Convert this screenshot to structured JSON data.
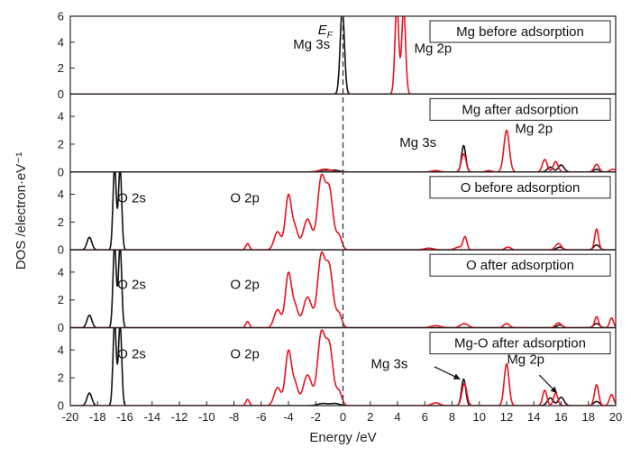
{
  "chart_data": {
    "type": "line",
    "xlabel": "Energy /eV",
    "ylabel": "DOS /electron·eV⁻¹",
    "xlim": [
      -20,
      20
    ],
    "xticks": [
      -20,
      -18,
      -16,
      -14,
      -12,
      -10,
      -8,
      -6,
      -4,
      -2,
      0,
      2,
      4,
      6,
      8,
      10,
      12,
      14,
      16,
      18,
      20
    ],
    "fermi_marker_x": 0,
    "fermi_label": {
      "main": "E",
      "sub": "F"
    },
    "colors": {
      "s": "#111111",
      "p": "#e8141e",
      "frame": "#222222",
      "fermi": "#333333"
    },
    "panels": [
      {
        "title": "Mg before adsorption",
        "ylim": [
          0,
          6
        ],
        "yticks": [
          0,
          2,
          4,
          6
        ],
        "labels": [
          {
            "text": "Mg 3s",
            "x": -2.3,
            "y": 3.5
          },
          {
            "text": "Mg 2p",
            "x": 6.6,
            "y": 3.2
          }
        ],
        "series": [
          {
            "name": "s",
            "color": "#111111",
            "peaks": [
              [
                -0.05,
                6.6,
                0.22
              ]
            ]
          },
          {
            "name": "p",
            "color": "#e8141e",
            "peaks": [
              [
                3.95,
                6.8,
                0.2
              ],
              [
                4.45,
                6.6,
                0.2
              ]
            ]
          }
        ]
      },
      {
        "title": "Mg after adsorption",
        "ylim": [
          0,
          5.6
        ],
        "yticks": [
          0,
          2,
          4
        ],
        "labels": [
          {
            "text": "Mg 3s",
            "x": 5.5,
            "y": 1.8
          },
          {
            "text": "Mg 2p",
            "x": 14.0,
            "y": 2.8
          }
        ],
        "series": [
          {
            "name": "s",
            "color": "#111111",
            "peaks": [
              [
                -1.4,
                0.12,
                0.5
              ],
              [
                -0.6,
                0.12,
                0.5
              ],
              [
                8.85,
                1.9,
                0.22
              ],
              [
                15.2,
                0.35,
                0.3
              ],
              [
                16.0,
                0.5,
                0.3
              ],
              [
                18.6,
                0.2,
                0.3
              ]
            ]
          },
          {
            "name": "p",
            "color": "#e8141e",
            "peaks": [
              [
                -1.3,
                0.2,
                0.6
              ],
              [
                6.8,
                0.1,
                0.4
              ],
              [
                8.85,
                1.3,
                0.25
              ],
              [
                10.7,
                0.1,
                0.3
              ],
              [
                12.0,
                3.0,
                0.28
              ],
              [
                14.8,
                0.9,
                0.25
              ],
              [
                15.6,
                0.75,
                0.25
              ],
              [
                18.6,
                0.55,
                0.25
              ],
              [
                19.8,
                0.2,
                0.3
              ]
            ]
          }
        ]
      },
      {
        "title": "O before adsorption",
        "ylim": [
          0,
          5.6
        ],
        "yticks": [
          0,
          2,
          4
        ],
        "labels": [
          {
            "text": "O 2s",
            "x": -15.5,
            "y": 3.4
          },
          {
            "text": "O 2p",
            "x": -7.2,
            "y": 3.4
          }
        ],
        "series": [
          {
            "name": "s",
            "color": "#111111",
            "peaks": [
              [
                -18.6,
                0.9,
                0.25
              ],
              [
                -16.75,
                6.0,
                0.17
              ],
              [
                -16.35,
                5.9,
                0.17
              ],
              [
                18.6,
                0.35,
                0.3
              ],
              [
                15.9,
                0.2,
                0.3
              ]
            ]
          },
          {
            "name": "p",
            "color": "#e8141e",
            "peaks": [
              [
                -7.0,
                0.45,
                0.18
              ],
              [
                -4.8,
                1.3,
                0.35
              ],
              [
                -4.0,
                3.9,
                0.32
              ],
              [
                -3.5,
                1.4,
                0.3
              ],
              [
                -2.6,
                2.2,
                0.45
              ],
              [
                -1.6,
                5.0,
                0.38
              ],
              [
                -1.0,
                4.2,
                0.38
              ],
              [
                -0.3,
                1.0,
                0.3
              ],
              [
                6.3,
                0.12,
                0.5
              ],
              [
                8.5,
                0.2,
                0.4
              ],
              [
                8.95,
                0.9,
                0.2
              ],
              [
                12.1,
                0.2,
                0.3
              ],
              [
                15.8,
                0.45,
                0.3
              ],
              [
                18.6,
                1.5,
                0.2
              ]
            ]
          }
        ]
      },
      {
        "title": "O after adsorption",
        "ylim": [
          0,
          5.6
        ],
        "yticks": [
          0,
          2,
          4
        ],
        "labels": [
          {
            "text": "O 2s",
            "x": -15.5,
            "y": 2.8
          },
          {
            "text": "O 2p",
            "x": -7.2,
            "y": 2.8
          }
        ],
        "series": [
          {
            "name": "s",
            "color": "#111111",
            "peaks": [
              [
                -18.6,
                0.9,
                0.25
              ],
              [
                -16.75,
                6.0,
                0.17
              ],
              [
                -16.35,
                5.9,
                0.17
              ],
              [
                18.6,
                0.3,
                0.3
              ],
              [
                15.9,
                0.2,
                0.3
              ]
            ]
          },
          {
            "name": "p",
            "color": "#e8141e",
            "peaks": [
              [
                -7.0,
                0.45,
                0.18
              ],
              [
                -4.8,
                1.3,
                0.35
              ],
              [
                -4.0,
                3.9,
                0.32
              ],
              [
                -3.5,
                1.4,
                0.3
              ],
              [
                -2.6,
                2.2,
                0.45
              ],
              [
                -1.6,
                5.0,
                0.38
              ],
              [
                -1.0,
                4.2,
                0.38
              ],
              [
                -0.3,
                1.0,
                0.3
              ],
              [
                6.8,
                0.15,
                0.5
              ],
              [
                8.9,
                0.3,
                0.4
              ],
              [
                12.0,
                0.3,
                0.3
              ],
              [
                15.8,
                0.35,
                0.3
              ],
              [
                18.6,
                0.8,
                0.2
              ],
              [
                19.7,
                0.7,
                0.2
              ]
            ]
          }
        ]
      },
      {
        "title": "Mg-O after adsorption",
        "ylim": [
          0,
          5.6
        ],
        "yticks": [
          0,
          2,
          4
        ],
        "labels": [
          {
            "text": "O 2s",
            "x": -15.5,
            "y": 3.4
          },
          {
            "text": "O 2p",
            "x": -7.2,
            "y": 3.4
          },
          {
            "text": "Mg 3s",
            "x": 3.4,
            "y": 2.7
          },
          {
            "text": "Mg 2p",
            "x": 13.4,
            "y": 3.0
          }
        ],
        "arrows": [
          {
            "from": [
              6.7,
              2.8
            ],
            "to": [
              8.6,
              1.9
            ]
          },
          {
            "from": [
              14.4,
              2.2
            ],
            "to": [
              15.7,
              0.9
            ]
          }
        ],
        "series": [
          {
            "name": "s",
            "color": "#111111",
            "peaks": [
              [
                -18.6,
                0.9,
                0.25
              ],
              [
                -16.75,
                6.0,
                0.17
              ],
              [
                -16.35,
                5.9,
                0.17
              ],
              [
                -1.5,
                0.15,
                0.5
              ],
              [
                -0.6,
                0.15,
                0.5
              ],
              [
                8.85,
                1.9,
                0.22
              ],
              [
                15.2,
                0.55,
                0.3
              ],
              [
                16.0,
                0.6,
                0.3
              ],
              [
                18.6,
                0.3,
                0.3
              ]
            ]
          },
          {
            "name": "p",
            "color": "#e8141e",
            "peaks": [
              [
                -7.0,
                0.45,
                0.18
              ],
              [
                -4.8,
                1.3,
                0.35
              ],
              [
                -4.0,
                3.9,
                0.32
              ],
              [
                -3.5,
                1.4,
                0.3
              ],
              [
                -2.6,
                2.2,
                0.45
              ],
              [
                -1.6,
                5.0,
                0.38
              ],
              [
                -1.0,
                4.2,
                0.38
              ],
              [
                -0.3,
                1.0,
                0.3
              ],
              [
                6.8,
                0.2,
                0.4
              ],
              [
                8.9,
                1.6,
                0.25
              ],
              [
                12.0,
                3.0,
                0.25
              ],
              [
                14.8,
                1.1,
                0.22
              ],
              [
                15.6,
                0.9,
                0.22
              ],
              [
                18.6,
                1.5,
                0.22
              ],
              [
                19.7,
                0.8,
                0.22
              ]
            ]
          }
        ]
      }
    ]
  }
}
